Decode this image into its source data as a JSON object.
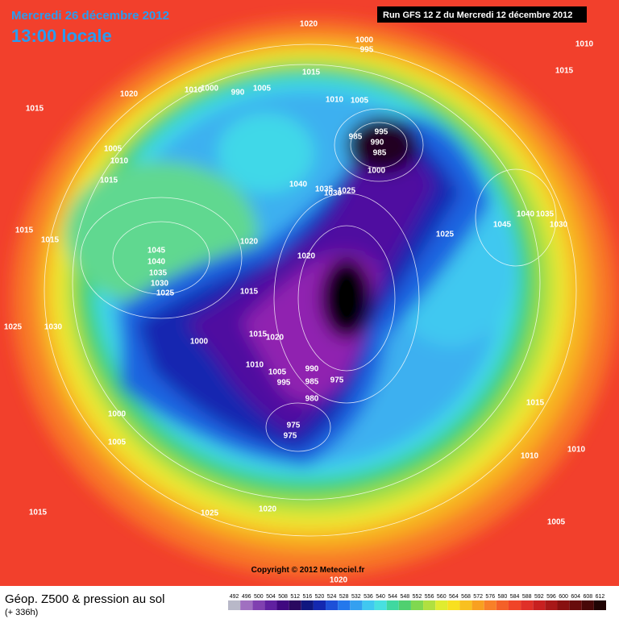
{
  "header": {
    "date": "Mercredi 26 décembre 2012",
    "time": "13:00 locale",
    "run": "Run GFS 12 Z du Mercredi 12 décembre 2012"
  },
  "copyright": "Copyright © 2012 Meteociel.fr",
  "footer": {
    "title": "Géop. Z500 & pression au sol",
    "lead": "(+ 336h)"
  },
  "isobar_labels": [
    1020,
    1000,
    995,
    1010,
    1015,
    1015,
    1015,
    1020,
    1010,
    1000,
    990,
    1005,
    1010,
    1005,
    995,
    985,
    990,
    985,
    1000,
    1005,
    1010,
    1015,
    1040,
    1035,
    1030,
    1025,
    1045,
    1040,
    1035,
    1030,
    1025,
    1015,
    1015,
    1020,
    1020,
    1045,
    1040,
    1035,
    1030,
    1025,
    1015,
    1025,
    1030,
    1000,
    1015,
    1020,
    1010,
    1005,
    990,
    995,
    985,
    975,
    980,
    1000,
    975,
    975,
    1005,
    1015,
    1010,
    1010,
    1005,
    1015,
    1025,
    1020,
    1020
  ],
  "legend": {
    "values": [
      492,
      496,
      500,
      504,
      508,
      512,
      516,
      520,
      524,
      528,
      532,
      536,
      540,
      544,
      548,
      552,
      556,
      560,
      564,
      568,
      572,
      576,
      580,
      584,
      588,
      592,
      596,
      600,
      604,
      608,
      612
    ],
    "colors": [
      "#b8b8c8",
      "#a070c0",
      "#8040b0",
      "#6020a0",
      "#400880",
      "#2a0860",
      "#101880",
      "#1428b0",
      "#1e50d8",
      "#2478ec",
      "#34a0f0",
      "#40c8f0",
      "#48e0e0",
      "#40d8a0",
      "#50d070",
      "#80d850",
      "#b0e040",
      "#e0ec30",
      "#f8e020",
      "#f8c020",
      "#f8a020",
      "#f88028",
      "#f46028",
      "#f04428",
      "#e03028",
      "#c82020",
      "#a81818",
      "#881010",
      "#680c0c",
      "#480808",
      "#200404"
    ]
  }
}
